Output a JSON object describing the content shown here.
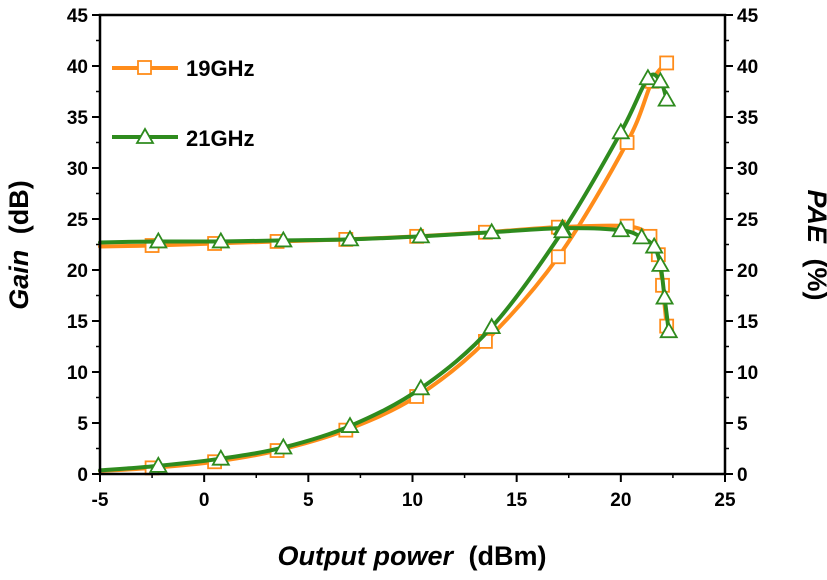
{
  "chart_data": {
    "type": "line",
    "x_axis": {
      "title_italic": "Output power",
      "title_unit": "(dBm)",
      "range": [
        -5,
        25
      ],
      "ticks": [
        "-5",
        "0",
        "5",
        "10",
        "15",
        "20",
        "25"
      ]
    },
    "y_left": {
      "title_italic": "Gain",
      "title_unit": "(dB)",
      "range": [
        0,
        45
      ],
      "ticks": [
        "0",
        "5",
        "10",
        "15",
        "20",
        "25",
        "30",
        "35",
        "40",
        "45"
      ]
    },
    "y_right": {
      "title_italic": "PAE",
      "title_unit": "(%)",
      "range": [
        0,
        45
      ],
      "ticks": [
        "0",
        "5",
        "10",
        "15",
        "20",
        "25",
        "30",
        "35",
        "40",
        "45"
      ]
    },
    "legend_position": "top-left",
    "series": [
      {
        "name": "19GHz",
        "color": "#FF8C1A",
        "marker": "square",
        "gain": {
          "x": [
            -5,
            -2.5,
            0.5,
            3.5,
            6.8,
            10.2,
            13.5,
            17,
            20.3,
            21.4,
            21.8,
            22.0,
            22.2
          ],
          "y": [
            22.3,
            22.4,
            22.6,
            22.8,
            23.0,
            23.3,
            23.7,
            24.2,
            24.3,
            23.3,
            21.5,
            18.5,
            14.5
          ]
        },
        "pae": {
          "x": [
            -5,
            -2.5,
            0.5,
            3.5,
            6.8,
            10.2,
            13.5,
            17,
            20.3,
            21.5,
            22.2
          ],
          "y": [
            0.3,
            0.6,
            1.2,
            2.3,
            4.3,
            7.6,
            13.0,
            21.3,
            32.5,
            38.5,
            40.3
          ]
        }
      },
      {
        "name": "21GHz",
        "color": "#2E8B1E",
        "marker": "triangle",
        "gain": {
          "x": [
            -5,
            -2.2,
            0.8,
            3.8,
            7.0,
            10.4,
            13.8,
            17.2,
            20.0,
            21.0,
            21.6,
            21.9,
            22.1,
            22.3
          ],
          "y": [
            22.7,
            22.8,
            22.8,
            22.9,
            23.0,
            23.3,
            23.7,
            24.1,
            23.9,
            23.2,
            22.3,
            20.5,
            17.3,
            14.0
          ]
        },
        "pae": {
          "x": [
            -5,
            -2.2,
            0.8,
            3.8,
            7.0,
            10.4,
            13.8,
            17.2,
            20.0,
            21.3,
            21.9,
            22.2
          ],
          "y": [
            0.35,
            0.8,
            1.5,
            2.6,
            4.7,
            8.4,
            14.4,
            23.8,
            33.5,
            38.8,
            38.5,
            36.7
          ]
        }
      }
    ]
  }
}
